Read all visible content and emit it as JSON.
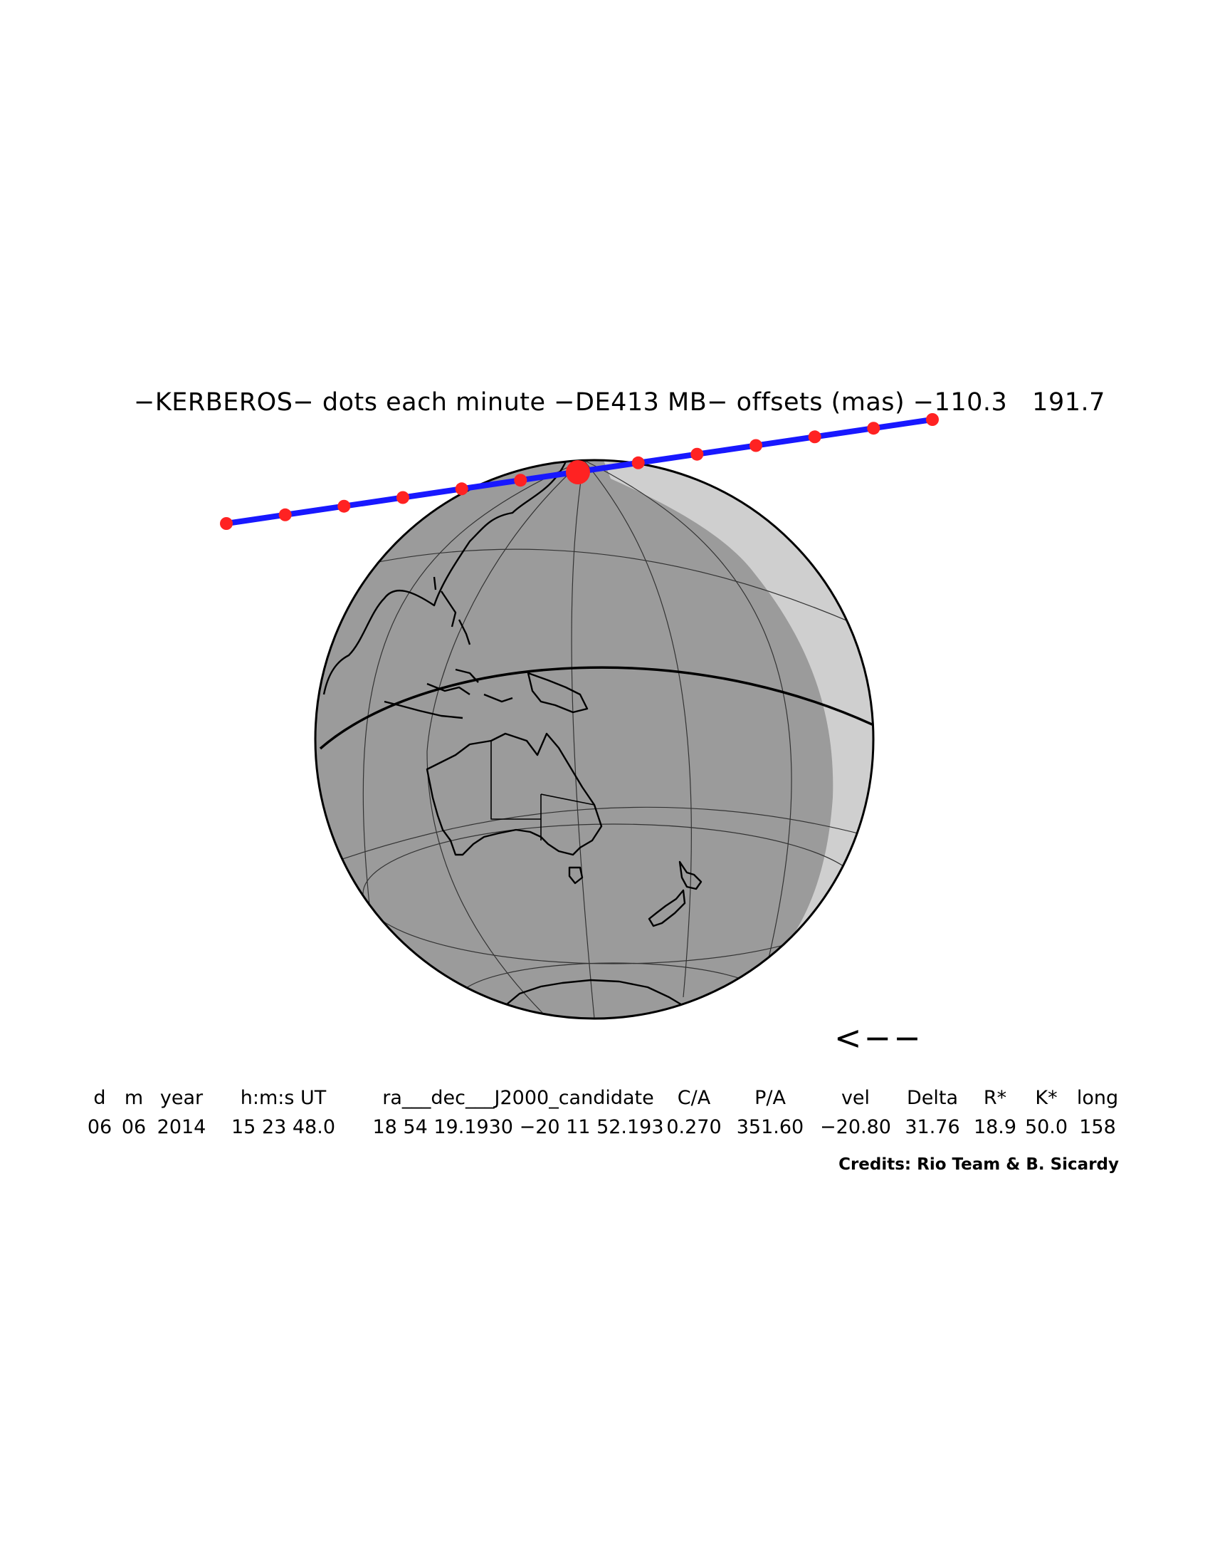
{
  "title": "−KERBEROS− dots each minute −DE413 MB− offsets (mas) −110.3   191.7",
  "direction_arrow": "<−−",
  "table": {
    "headers": [
      "d",
      "m",
      "year",
      "h:m:s UT",
      "ra___dec___J2000_candidate",
      "C/A",
      "P/A",
      "vel",
      "Delta",
      "R*",
      "K*",
      "long"
    ],
    "values": [
      "06",
      "06",
      "2014",
      "15 23 48.0",
      "18 54 19.1930 −20 11 52.193",
      "0.270",
      "351.60",
      "−20.80",
      "31.76",
      "18.9",
      "50.0",
      "158"
    ]
  },
  "credits": "Credits: Rio Team & B. Sicardy",
  "colors": {
    "night_shade": "#9b9b9b",
    "twilight_shade": "#cfcfcf",
    "track_line": "#1818ff",
    "track_dots": "#ff2222",
    "outline": "#000000"
  },
  "icons": [
    "globe-map",
    "shadow-track"
  ]
}
